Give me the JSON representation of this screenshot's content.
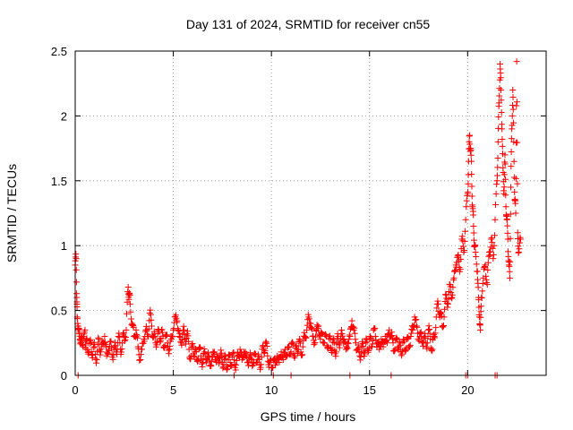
{
  "chart_data": {
    "type": "scatter",
    "title": "Day 131 of 2024, SRMTID for receiver cn55",
    "xlabel": "GPS time / hours",
    "ylabel": "SRMTID / TECUs",
    "xlim": [
      0,
      24
    ],
    "ylim": [
      0,
      2.5
    ],
    "grid": true,
    "x_ticks": [
      0,
      5,
      10,
      15,
      20
    ],
    "x_tick_labels": [
      "0",
      "5",
      "10",
      "15",
      "20"
    ],
    "y_ticks": [
      0,
      0.5,
      1,
      1.5,
      2,
      2.5
    ],
    "y_tick_labels": [
      "0",
      "0.5",
      "1",
      "1.5",
      "2",
      "2.5"
    ],
    "marker": "+",
    "series": [
      {
        "name": "SRMTID",
        "color": "#ff0000",
        "points": [
          [
            0.0,
            0.85
          ],
          [
            0.05,
            0.9
          ],
          [
            0.08,
            0.6
          ],
          [
            0.1,
            0.45
          ],
          [
            0.15,
            0.38
          ],
          [
            0.2,
            0.32
          ],
          [
            0.25,
            0.28
          ],
          [
            0.3,
            0.25
          ],
          [
            0.35,
            0.3
          ],
          [
            0.4,
            0.22
          ],
          [
            0.5,
            0.35
          ],
          [
            0.55,
            0.2
          ],
          [
            0.6,
            0.27
          ],
          [
            0.7,
            0.18
          ],
          [
            0.8,
            0.25
          ],
          [
            0.9,
            0.16
          ],
          [
            1.0,
            0.22
          ],
          [
            1.1,
            0.12
          ],
          [
            1.2,
            0.28
          ],
          [
            1.3,
            0.18
          ],
          [
            1.4,
            0.24
          ],
          [
            1.5,
            0.3
          ],
          [
            1.6,
            0.15
          ],
          [
            1.7,
            0.2
          ],
          [
            1.8,
            0.26
          ],
          [
            1.9,
            0.14
          ],
          [
            2.0,
            0.22
          ],
          [
            2.1,
            0.18
          ],
          [
            2.2,
            0.3
          ],
          [
            2.3,
            0.2
          ],
          [
            2.4,
            0.25
          ],
          [
            2.5,
            0.3
          ],
          [
            2.6,
            0.35
          ],
          [
            2.7,
            0.68
          ],
          [
            2.75,
            0.62
          ],
          [
            2.8,
            0.55
          ],
          [
            2.9,
            0.4
          ],
          [
            3.0,
            0.3
          ],
          [
            3.1,
            0.35
          ],
          [
            3.2,
            0.22
          ],
          [
            3.3,
            0.12
          ],
          [
            3.4,
            0.2
          ],
          [
            3.5,
            0.28
          ],
          [
            3.6,
            0.35
          ],
          [
            3.7,
            0.3
          ],
          [
            3.8,
            0.48
          ],
          [
            3.9,
            0.38
          ],
          [
            4.0,
            0.3
          ],
          [
            4.1,
            0.25
          ],
          [
            4.2,
            0.32
          ],
          [
            4.3,
            0.28
          ],
          [
            4.4,
            0.35
          ],
          [
            4.5,
            0.22
          ],
          [
            4.6,
            0.3
          ],
          [
            4.7,
            0.25
          ],
          [
            4.8,
            0.2
          ],
          [
            4.9,
            0.28
          ],
          [
            5.0,
            0.35
          ],
          [
            5.1,
            0.45
          ],
          [
            5.2,
            0.42
          ],
          [
            5.3,
            0.3
          ],
          [
            5.4,
            0.25
          ],
          [
            5.5,
            0.35
          ],
          [
            5.6,
            0.28
          ],
          [
            5.7,
            0.32
          ],
          [
            5.8,
            0.2
          ],
          [
            5.9,
            0.15
          ],
          [
            6.0,
            0.22
          ],
          [
            6.1,
            0.18
          ],
          [
            6.2,
            0.12
          ],
          [
            6.3,
            0.2
          ],
          [
            6.4,
            0.15
          ],
          [
            6.5,
            0.1
          ],
          [
            6.6,
            0.18
          ],
          [
            6.7,
            0.12
          ],
          [
            6.8,
            0.15
          ],
          [
            6.9,
            0.08
          ],
          [
            7.0,
            0.14
          ],
          [
            7.1,
            0.18
          ],
          [
            7.2,
            0.1
          ],
          [
            7.3,
            0.13
          ],
          [
            7.4,
            0.16
          ],
          [
            7.5,
            0.1
          ],
          [
            7.6,
            0.12
          ],
          [
            7.7,
            0.08
          ],
          [
            7.8,
            0.12
          ],
          [
            7.9,
            0.1
          ],
          [
            8.0,
            0.14
          ],
          [
            8.1,
            0.12
          ],
          [
            8.2,
            0.08
          ],
          [
            8.3,
            0.15
          ],
          [
            8.4,
            0.2
          ],
          [
            8.5,
            0.12
          ],
          [
            8.6,
            0.18
          ],
          [
            8.7,
            0.15
          ],
          [
            8.8,
            0.1
          ],
          [
            8.9,
            0.14
          ],
          [
            9.0,
            0.12
          ],
          [
            9.1,
            0.1
          ],
          [
            9.2,
            0.16
          ],
          [
            9.3,
            0.12
          ],
          [
            9.4,
            0.08
          ],
          [
            9.5,
            0.14
          ],
          [
            9.6,
            0.2
          ],
          [
            9.7,
            0.25
          ],
          [
            9.8,
            0.15
          ],
          [
            9.9,
            0.1
          ],
          [
            10.0,
            0.06
          ],
          [
            10.1,
            0.12
          ],
          [
            10.2,
            0.08
          ],
          [
            10.3,
            0.15
          ],
          [
            10.4,
            0.1
          ],
          [
            10.5,
            0.18
          ],
          [
            10.6,
            0.12
          ],
          [
            10.7,
            0.2
          ],
          [
            10.8,
            0.15
          ],
          [
            10.9,
            0.22
          ],
          [
            11.0,
            0.18
          ],
          [
            11.1,
            0.24
          ],
          [
            11.2,
            0.15
          ],
          [
            11.3,
            0.2
          ],
          [
            11.4,
            0.26
          ],
          [
            11.5,
            0.18
          ],
          [
            11.6,
            0.22
          ],
          [
            11.7,
            0.3
          ],
          [
            11.8,
            0.35
          ],
          [
            11.9,
            0.45
          ],
          [
            12.0,
            0.4
          ],
          [
            12.1,
            0.3
          ],
          [
            12.2,
            0.25
          ],
          [
            12.3,
            0.35
          ],
          [
            12.4,
            0.38
          ],
          [
            12.5,
            0.28
          ],
          [
            12.6,
            0.32
          ],
          [
            12.7,
            0.25
          ],
          [
            12.8,
            0.3
          ],
          [
            12.9,
            0.22
          ],
          [
            13.0,
            0.28
          ],
          [
            13.1,
            0.2
          ],
          [
            13.2,
            0.25
          ],
          [
            13.3,
            0.18
          ],
          [
            13.4,
            0.3
          ],
          [
            13.5,
            0.25
          ],
          [
            13.6,
            0.32
          ],
          [
            13.7,
            0.28
          ],
          [
            13.8,
            0.2
          ],
          [
            13.9,
            0.25
          ],
          [
            14.0,
            0.3
          ],
          [
            14.1,
            0.42
          ],
          [
            14.2,
            0.35
          ],
          [
            14.3,
            0.25
          ],
          [
            14.4,
            0.2
          ],
          [
            14.5,
            0.15
          ],
          [
            14.6,
            0.22
          ],
          [
            14.7,
            0.18
          ],
          [
            14.8,
            0.25
          ],
          [
            14.9,
            0.2
          ],
          [
            15.0,
            0.28
          ],
          [
            15.1,
            0.22
          ],
          [
            15.2,
            0.35
          ],
          [
            15.3,
            0.3
          ],
          [
            15.4,
            0.25
          ],
          [
            15.5,
            0.2
          ],
          [
            15.6,
            0.28
          ],
          [
            15.7,
            0.22
          ],
          [
            15.8,
            0.3
          ],
          [
            15.9,
            0.25
          ],
          [
            16.0,
            0.35
          ],
          [
            16.1,
            0.3
          ],
          [
            16.2,
            0.25
          ],
          [
            16.3,
            0.2
          ],
          [
            16.4,
            0.28
          ],
          [
            16.5,
            0.22
          ],
          [
            16.6,
            0.18
          ],
          [
            16.7,
            0.25
          ],
          [
            16.8,
            0.2
          ],
          [
            16.9,
            0.28
          ],
          [
            17.0,
            0.22
          ],
          [
            17.1,
            0.3
          ],
          [
            17.2,
            0.35
          ],
          [
            17.3,
            0.45
          ],
          [
            17.4,
            0.38
          ],
          [
            17.5,
            0.28
          ],
          [
            17.6,
            0.32
          ],
          [
            17.7,
            0.25
          ],
          [
            17.8,
            0.3
          ],
          [
            17.9,
            0.22
          ],
          [
            18.0,
            0.35
          ],
          [
            18.1,
            0.28
          ],
          [
            18.2,
            0.2
          ],
          [
            18.3,
            0.3
          ],
          [
            18.4,
            0.45
          ],
          [
            18.5,
            0.55
          ],
          [
            18.6,
            0.48
          ],
          [
            18.7,
            0.38
          ],
          [
            18.8,
            0.45
          ],
          [
            18.9,
            0.62
          ],
          [
            19.0,
            0.55
          ],
          [
            19.1,
            0.7
          ],
          [
            19.2,
            0.6
          ],
          [
            19.3,
            0.75
          ],
          [
            19.4,
            0.85
          ],
          [
            19.5,
            0.92
          ],
          [
            19.6,
            0.8
          ],
          [
            19.7,
            1.05
          ],
          [
            19.8,
            0.95
          ],
          [
            19.9,
            1.2
          ],
          [
            20.0,
            1.4
          ],
          [
            20.05,
            1.65
          ],
          [
            20.1,
            1.85
          ],
          [
            20.15,
            1.75
          ],
          [
            20.2,
            1.55
          ],
          [
            20.25,
            1.3
          ],
          [
            20.3,
            1.15
          ],
          [
            20.35,
            1.0
          ],
          [
            20.4,
            0.95
          ],
          [
            20.5,
            0.8
          ],
          [
            20.55,
            0.6
          ],
          [
            20.6,
            0.45
          ],
          [
            20.65,
            0.35
          ],
          [
            20.7,
            0.6
          ],
          [
            20.8,
            0.75
          ],
          [
            20.9,
            0.85
          ],
          [
            21.0,
            0.7
          ],
          [
            21.1,
            0.95
          ],
          [
            21.2,
            1.05
          ],
          [
            21.3,
            0.9
          ],
          [
            21.4,
            1.2
          ],
          [
            21.5,
            1.5
          ],
          [
            21.55,
            1.8
          ],
          [
            21.6,
            2.1
          ],
          [
            21.65,
            2.4
          ],
          [
            21.7,
            2.2
          ],
          [
            21.75,
            1.9
          ],
          [
            21.8,
            1.6
          ],
          [
            21.85,
            1.4
          ],
          [
            21.9,
            1.7
          ],
          [
            21.95,
            1.3
          ],
          [
            22.0,
            1.2
          ],
          [
            22.05,
            1.05
          ],
          [
            22.1,
            0.85
          ],
          [
            22.15,
            0.75
          ],
          [
            22.2,
            1.45
          ],
          [
            22.25,
            1.9
          ],
          [
            22.3,
            2.2
          ],
          [
            22.35,
            1.8
          ],
          [
            22.4,
            1.35
          ],
          [
            22.45,
            1.25
          ],
          [
            22.5,
            2.42
          ],
          [
            22.55,
            1.1
          ],
          [
            22.6,
            0.95
          ],
          [
            22.7,
            1.05
          ]
        ]
      }
    ],
    "outlier_points": [
      [
        0.15,
        0.0
      ],
      [
        8.1,
        0.0
      ],
      [
        10.1,
        0.0
      ],
      [
        11.0,
        0.0
      ],
      [
        14.0,
        0.0
      ],
      [
        16.1,
        0.0
      ],
      [
        19.9,
        0.0
      ],
      [
        20.0,
        0.0
      ],
      [
        21.4,
        0.0
      ],
      [
        21.5,
        0.0
      ]
    ]
  }
}
